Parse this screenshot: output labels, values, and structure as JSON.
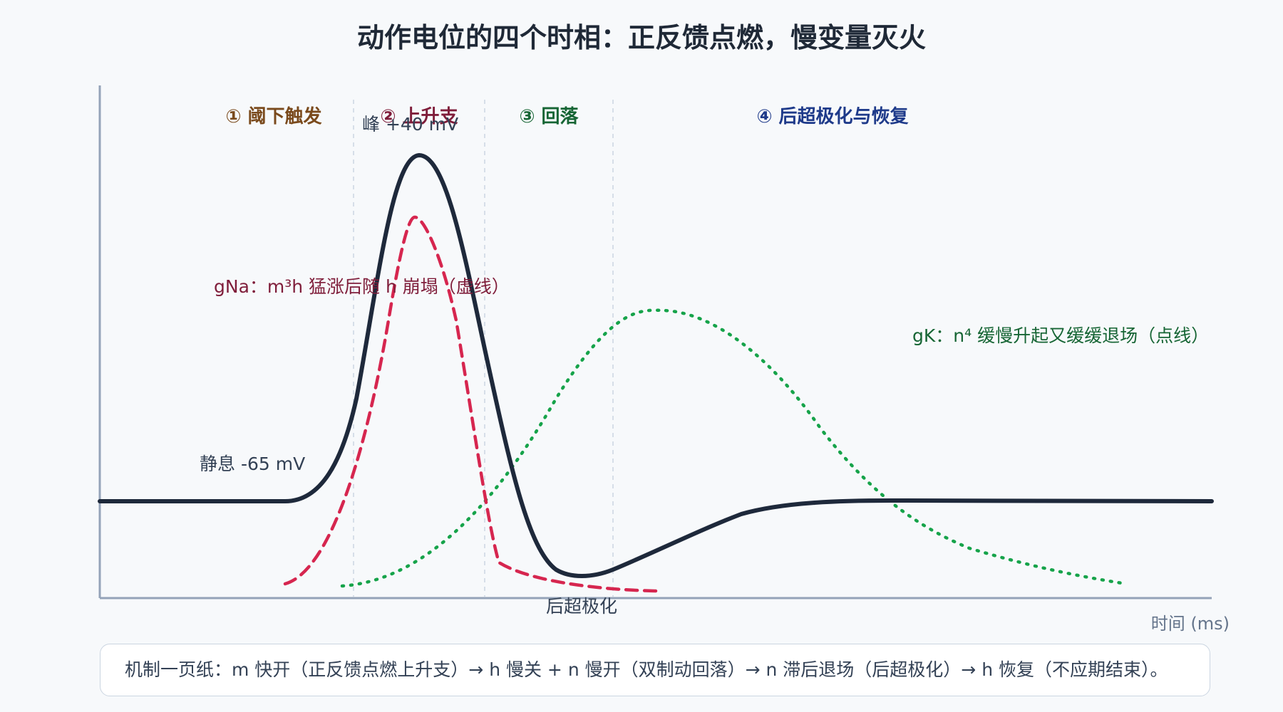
{
  "title": "动作电位的四个时相：正反馈点燃，慢变量灭火",
  "phases": [
    {
      "label": "① 阈下触发",
      "color": "#7a4a1c"
    },
    {
      "label": "② 上升支",
      "color": "#7f1d3a"
    },
    {
      "label": "③ 回落",
      "color": "#166534"
    },
    {
      "label": "④ 后超极化与恢复",
      "color": "#1e3a8a"
    }
  ],
  "annotations": {
    "peak": "峰 +40 mV",
    "rest": "静息 -65 mV",
    "ahp": "后超极化",
    "gna": "gNa：m³h 猛涨后随 h 崩塌（虚线）",
    "gk": "gK：n⁴ 缓慢升起又缓缓退场（点线）"
  },
  "axes": {
    "xlabel": "时间 (ms)"
  },
  "colors": {
    "membrane": "#1e293b",
    "gna": "#d6264f",
    "gk": "#16a34a",
    "axis": "#94a3b8",
    "divider": "#cbd5e1"
  },
  "caption": "机制一页纸：m 快开（正反馈点燃上升支）→ h 慢关 + n 慢开（双制动回落）→ n 滞后退场（后超极化）→ h 恢复（不应期结束）。"
}
